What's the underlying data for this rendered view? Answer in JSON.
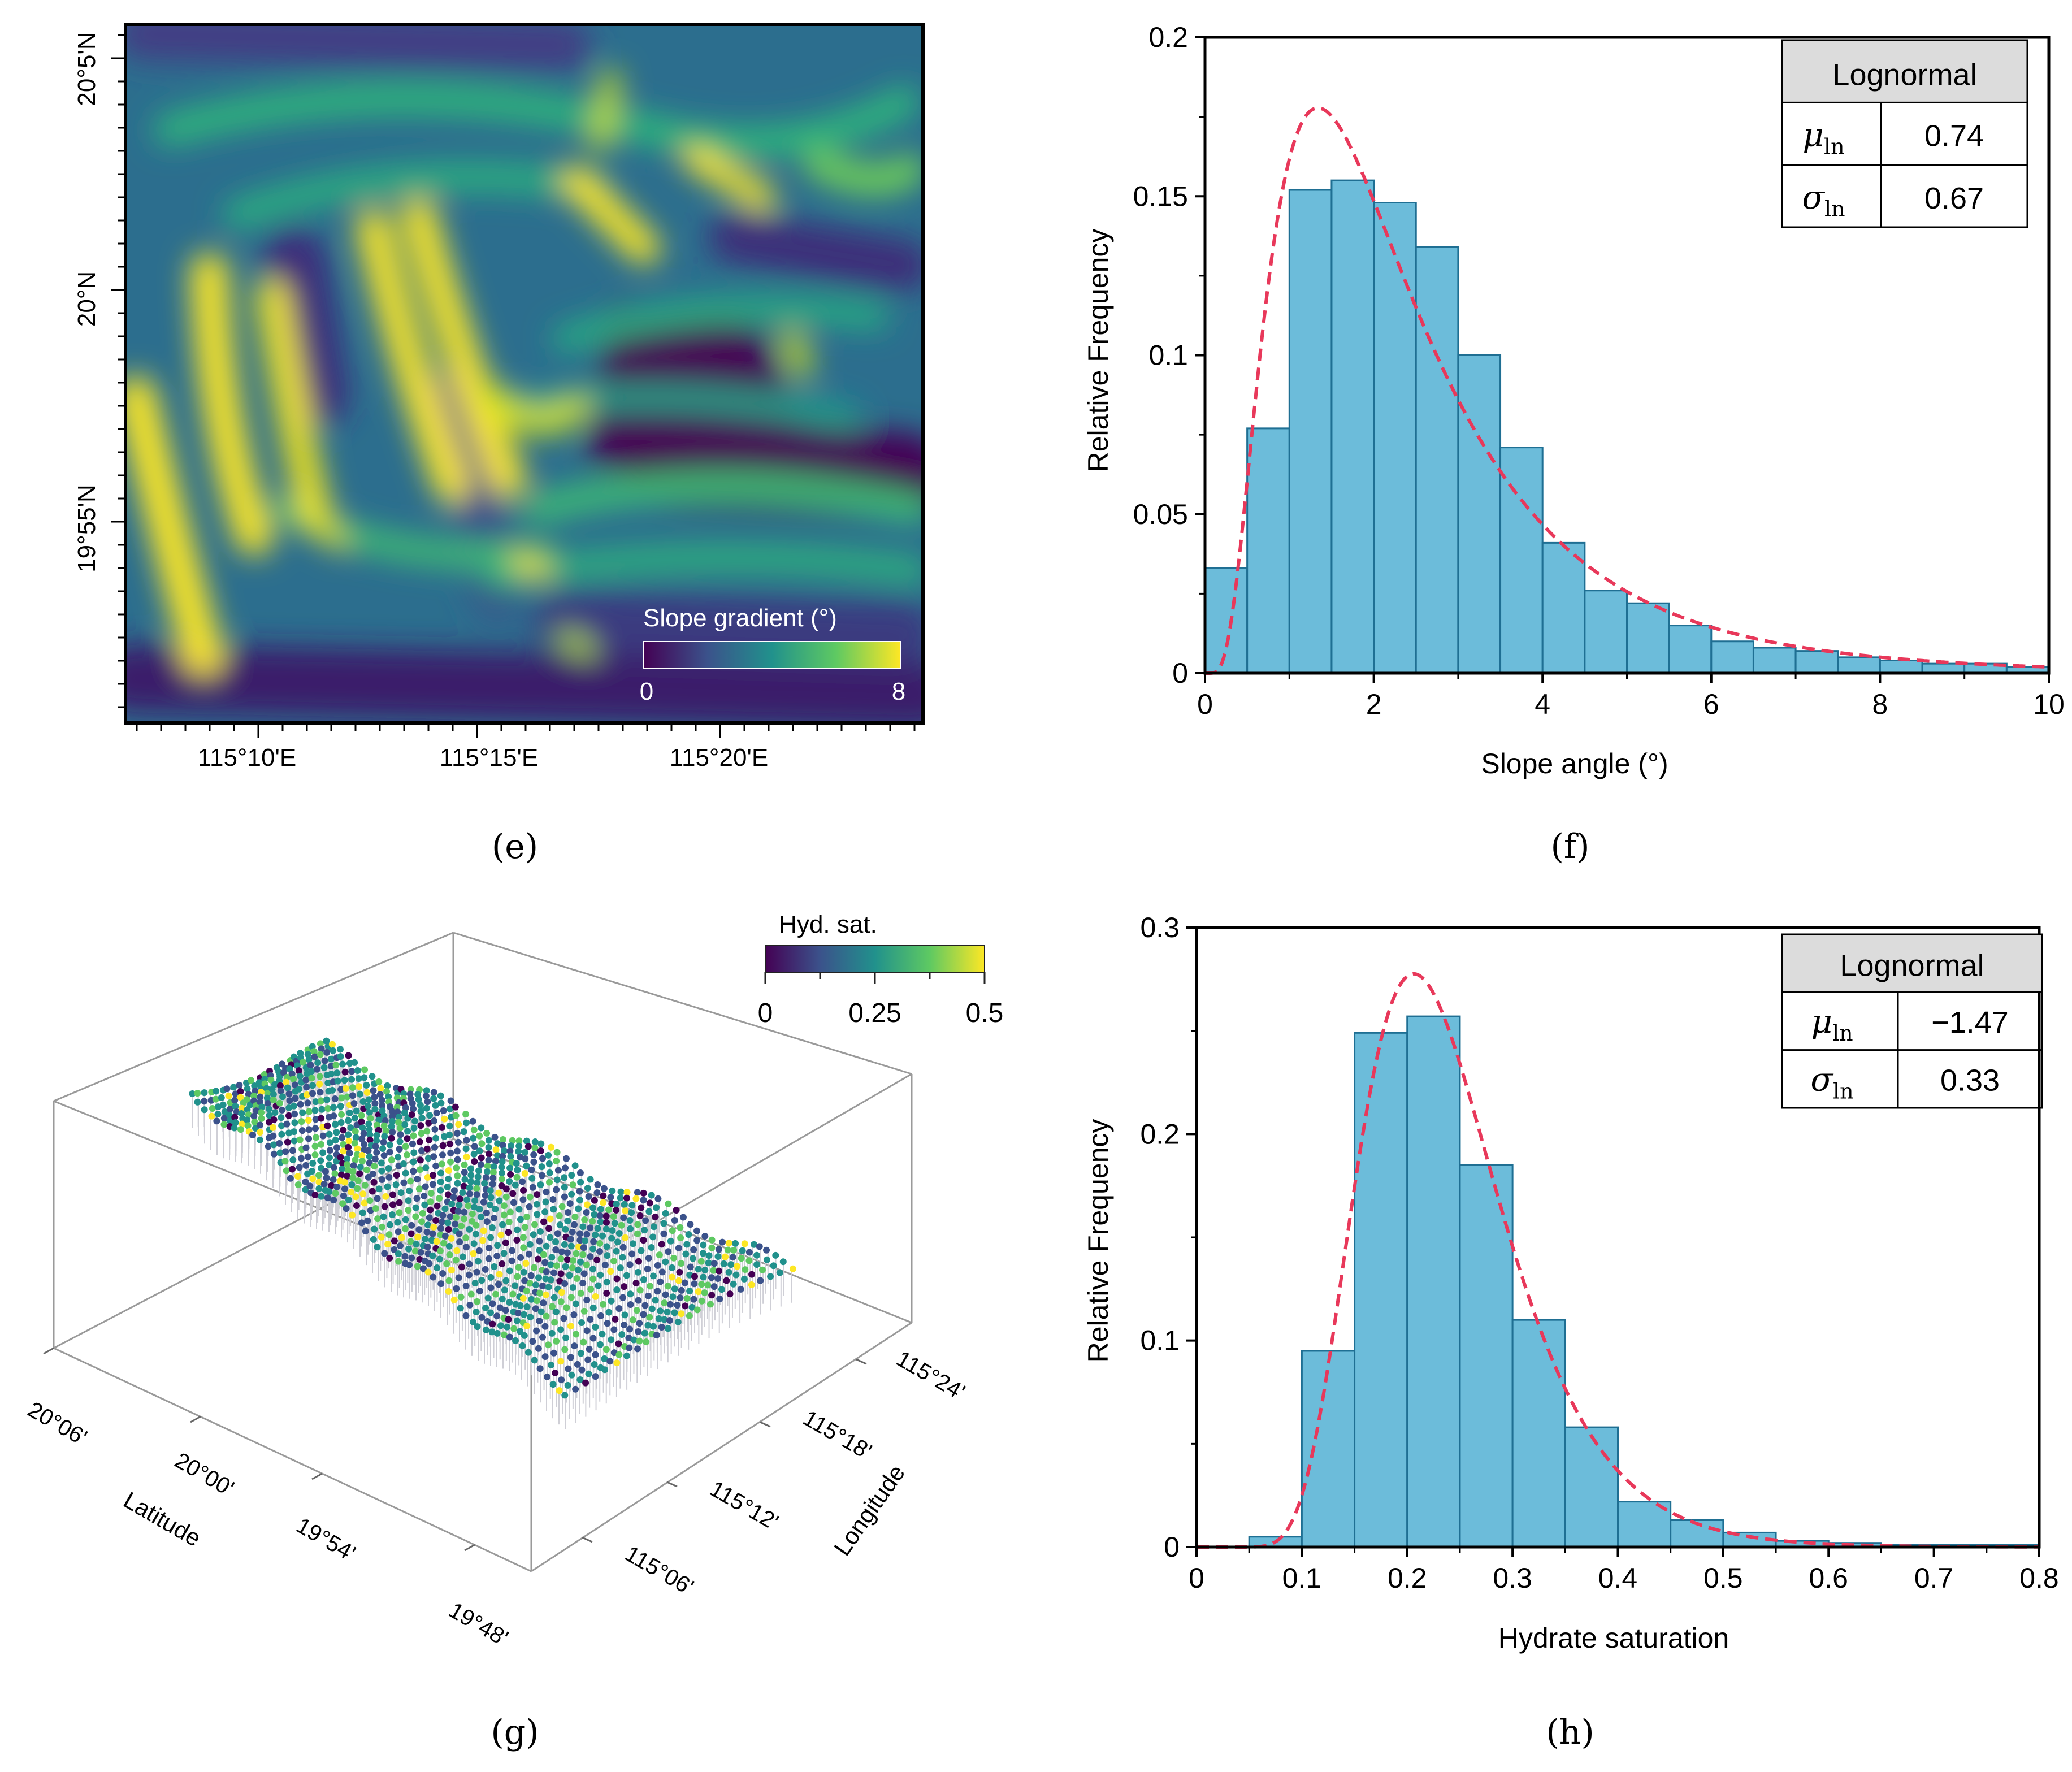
{
  "colors": {
    "bar_fill": "#6cbcda",
    "bar_stroke": "#1f6f93",
    "fit_curve": "#e8385a",
    "viridis": [
      "#440154",
      "#3b528b",
      "#21918c",
      "#5ec962",
      "#fde725"
    ]
  },
  "panel_labels": {
    "e": "(e)",
    "f": "(f)",
    "g": "(g)",
    "h": "(h)"
  },
  "chart_data": [
    {
      "id": "e",
      "type": "heatmap",
      "xticks": [
        "115°10'E",
        "115°15'E",
        "115°20'E"
      ],
      "yticks": [
        "20°5'N",
        "20°N",
        "19°55'N"
      ],
      "colorbar": {
        "title": "Slope gradient (°)",
        "min_label": "0",
        "max_label": "8",
        "range": [
          0,
          8
        ],
        "colormap": "viridis"
      }
    },
    {
      "id": "f",
      "type": "bar",
      "xlabel": "Slope angle (°)",
      "ylabel": "Relative Frequency",
      "xlim": [
        0,
        10
      ],
      "ylim": [
        0,
        0.2
      ],
      "xticks": [
        "0",
        "2",
        "4",
        "6",
        "8",
        "10"
      ],
      "yticks": [
        "0",
        "0.05",
        "0.1",
        "0.15",
        "0.2"
      ],
      "bin_edges": [
        0,
        0.5,
        1,
        1.5,
        2,
        2.5,
        3,
        3.5,
        4,
        4.5,
        5,
        5.5,
        6,
        6.5,
        7,
        7.5,
        8,
        8.5,
        9,
        9.5,
        10
      ],
      "values": [
        0.033,
        0.077,
        0.152,
        0.155,
        0.148,
        0.134,
        0.1,
        0.071,
        0.041,
        0.026,
        0.022,
        0.015,
        0.01,
        0.008,
        0.007,
        0.005,
        0.004,
        0.003,
        0.003,
        0.002
      ],
      "fit": {
        "name": "Lognormal",
        "mu": 0.74,
        "sigma": 0.67
      },
      "table": {
        "header": "Lognormal",
        "mu_label": "μ",
        "sigma_label": "σ",
        "sub": "ln",
        "mu_value": "0.74",
        "sigma_value": "0.67"
      }
    },
    {
      "id": "g",
      "type": "scatter",
      "xlabel": "Latitude",
      "ylabel": "Longitude",
      "lat_ticks": [
        "20°06'",
        "20°00'",
        "19°54'",
        "19°48'"
      ],
      "lon_ticks": [
        "115°06'",
        "115°12'",
        "115°18'",
        "115°24'"
      ],
      "colorbar": {
        "title": "Hyd. sat.",
        "tick_labels": [
          "0",
          "0.25",
          "0.5"
        ],
        "range": [
          0,
          0.5
        ],
        "colormap": "viridis"
      }
    },
    {
      "id": "h",
      "type": "bar",
      "xlabel": "Hydrate saturation",
      "ylabel": "Relative Frequency",
      "xlim": [
        0,
        0.8
      ],
      "ylim": [
        0,
        0.3
      ],
      "xticks": [
        "0",
        "0.1",
        "0.2",
        "0.3",
        "0.4",
        "0.5",
        "0.6",
        "0.7",
        "0.8"
      ],
      "yticks": [
        "0",
        "0.1",
        "0.2",
        "0.3"
      ],
      "bin_edges": [
        0.05,
        0.1,
        0.15,
        0.2,
        0.25,
        0.3,
        0.35,
        0.4,
        0.45,
        0.5,
        0.55,
        0.6,
        0.65,
        0.7,
        0.75,
        0.8
      ],
      "values": [
        0.005,
        0.095,
        0.249,
        0.257,
        0.185,
        0.11,
        0.058,
        0.022,
        0.013,
        0.007,
        0.003,
        0.002,
        0.001,
        0.001,
        0.001
      ],
      "fit": {
        "name": "Lognormal",
        "mu": -1.47,
        "sigma": 0.33
      },
      "table": {
        "header": "Lognormal",
        "mu_label": "μ",
        "sigma_label": "σ",
        "sub": "ln",
        "mu_value": "−1.47",
        "sigma_value": "0.33"
      }
    }
  ]
}
